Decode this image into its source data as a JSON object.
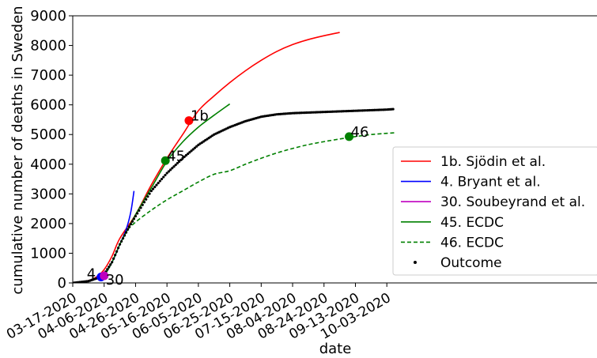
{
  "chart_data": {
    "type": "line",
    "xlabel": "date",
    "ylabel": "cumulative number of deaths in Sweden",
    "ylim": [
      0,
      9000
    ],
    "y_ticks": [
      0,
      1000,
      2000,
      3000,
      4000,
      5000,
      6000,
      7000,
      8000,
      9000
    ],
    "x_tick_labels": [
      "03-17-2020",
      "04-06-2020",
      "04-26-2020",
      "05-16-2020",
      "06-05-2020",
      "06-25-2020",
      "07-15-2020",
      "08-04-2020",
      "08-24-2020",
      "09-13-2020",
      "10-03-2020"
    ],
    "grid": false,
    "legend_position": "center-right",
    "series": [
      {
        "name": "1b. Sjödin et al.",
        "color": "#ff0000",
        "style": "solid",
        "points": [
          [
            "03-17-2020",
            0
          ],
          [
            "03-27-2020",
            80
          ],
          [
            "04-01-2020",
            200
          ],
          [
            "04-06-2020",
            450
          ],
          [
            "04-11-2020",
            900
          ],
          [
            "04-16-2020",
            1500
          ],
          [
            "04-26-2020",
            2300
          ],
          [
            "05-06-2020",
            3300
          ],
          [
            "05-16-2020",
            4200
          ],
          [
            "05-26-2020",
            5000
          ],
          [
            "06-05-2020",
            5800
          ],
          [
            "06-15-2020",
            6300
          ],
          [
            "06-25-2020",
            6750
          ],
          [
            "07-05-2020",
            7150
          ],
          [
            "07-15-2020",
            7500
          ],
          [
            "07-25-2020",
            7800
          ],
          [
            "08-04-2020",
            8030
          ],
          [
            "08-14-2020",
            8200
          ],
          [
            "08-24-2020",
            8330
          ],
          [
            "09-03-2020",
            8440
          ]
        ]
      },
      {
        "name": "4. Bryant et al.",
        "color": "#0000ff",
        "style": "solid",
        "points": [
          [
            "04-01-2020",
            150
          ],
          [
            "04-04-2020",
            230
          ],
          [
            "04-08-2020",
            420
          ],
          [
            "04-12-2020",
            800
          ],
          [
            "04-16-2020",
            1300
          ],
          [
            "04-20-2020",
            1800
          ],
          [
            "04-23-2020",
            2400
          ],
          [
            "04-25-2020",
            3100
          ]
        ]
      },
      {
        "name": "30. Soubeyrand et al.",
        "color": "#bf00bf",
        "style": "solid",
        "points": [
          [
            "04-01-2020",
            180
          ],
          [
            "04-04-2020",
            250
          ],
          [
            "04-06-2020",
            300
          ]
        ]
      },
      {
        "name": "45. ECDC",
        "color": "#008000",
        "style": "solid",
        "points": [
          [
            "04-02-2020",
            130
          ],
          [
            "04-06-2020",
            250
          ],
          [
            "04-11-2020",
            700
          ],
          [
            "04-16-2020",
            1300
          ],
          [
            "04-21-2020",
            1800
          ],
          [
            "04-26-2020",
            2300
          ],
          [
            "05-06-2020",
            3200
          ],
          [
            "05-16-2020",
            4100
          ],
          [
            "05-26-2020",
            4750
          ],
          [
            "06-05-2020",
            5250
          ],
          [
            "06-15-2020",
            5650
          ],
          [
            "06-25-2020",
            6030
          ]
        ]
      },
      {
        "name": "46. ECDC",
        "color": "#008000",
        "style": "dashed",
        "points": [
          [
            "04-21-2020",
            1800
          ],
          [
            "04-26-2020",
            2050
          ],
          [
            "05-06-2020",
            2450
          ],
          [
            "05-16-2020",
            2800
          ],
          [
            "05-26-2020",
            3100
          ],
          [
            "06-05-2020",
            3400
          ],
          [
            "06-15-2020",
            3660
          ],
          [
            "06-25-2020",
            3780
          ],
          [
            "07-05-2020",
            4000
          ],
          [
            "07-15-2020",
            4200
          ],
          [
            "07-25-2020",
            4380
          ],
          [
            "08-04-2020",
            4530
          ],
          [
            "08-14-2020",
            4660
          ],
          [
            "08-24-2020",
            4760
          ],
          [
            "09-03-2020",
            4850
          ],
          [
            "09-13-2020",
            4930
          ],
          [
            "09-23-2020",
            5000
          ],
          [
            "10-03-2020",
            5040
          ],
          [
            "10-08-2020",
            5060
          ]
        ]
      },
      {
        "name": "Outcome",
        "color": "#000000",
        "style": "dots",
        "points": [
          [
            "03-17-2020",
            0
          ],
          [
            "03-27-2020",
            60
          ],
          [
            "04-01-2020",
            150
          ],
          [
            "04-06-2020",
            300
          ],
          [
            "04-11-2020",
            700
          ],
          [
            "04-16-2020",
            1300
          ],
          [
            "04-21-2020",
            1800
          ],
          [
            "04-26-2020",
            2250
          ],
          [
            "05-06-2020",
            3100
          ],
          [
            "05-16-2020",
            3700
          ],
          [
            "05-26-2020",
            4200
          ],
          [
            "06-05-2020",
            4650
          ],
          [
            "06-15-2020",
            5000
          ],
          [
            "06-25-2020",
            5250
          ],
          [
            "07-05-2020",
            5450
          ],
          [
            "07-15-2020",
            5600
          ],
          [
            "07-25-2020",
            5680
          ],
          [
            "08-04-2020",
            5720
          ],
          [
            "08-14-2020",
            5740
          ],
          [
            "08-24-2020",
            5760
          ],
          [
            "09-03-2020",
            5780
          ],
          [
            "09-13-2020",
            5800
          ],
          [
            "09-23-2020",
            5820
          ],
          [
            "10-03-2020",
            5840
          ],
          [
            "10-08-2020",
            5860
          ]
        ]
      }
    ],
    "markers": [
      {
        "label": "4",
        "date": "04-04-2020",
        "value": 200,
        "color": "#0000ff"
      },
      {
        "label": "30",
        "date": "04-06-2020",
        "value": 240,
        "color": "#bf00bf"
      },
      {
        "label": "1b",
        "date": "05-30-2020",
        "value": 5470,
        "color": "#ff0000"
      },
      {
        "label": "45",
        "date": "05-15-2020",
        "value": 4120,
        "color": "#008000"
      },
      {
        "label": "46",
        "date": "09-09-2020",
        "value": 4930,
        "color": "#008000"
      }
    ]
  }
}
